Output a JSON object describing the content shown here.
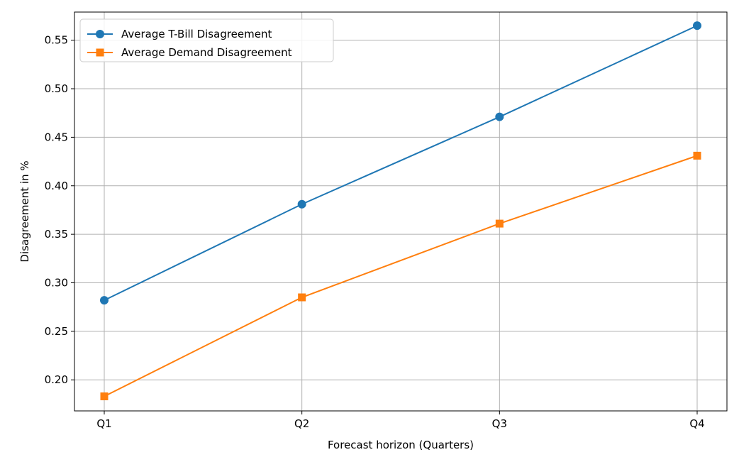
{
  "chart_data": {
    "type": "line",
    "title": "",
    "xlabel": "Forecast horizon (Quarters)",
    "ylabel": "Disagreement in %",
    "categories": [
      "Q1",
      "Q2",
      "Q3",
      "Q4"
    ],
    "ylim": [
      0.168,
      0.579
    ],
    "yticks": [
      0.2,
      0.25,
      0.3,
      0.35,
      0.4,
      0.45,
      0.5,
      0.55
    ],
    "ytick_labels": [
      "0.20",
      "0.25",
      "0.30",
      "0.35",
      "0.40",
      "0.45",
      "0.50",
      "0.55"
    ],
    "grid": true,
    "legend_position": "top-left",
    "series": [
      {
        "name": "Average T-Bill Disagreement",
        "values": [
          0.282,
          0.381,
          0.471,
          0.565
        ],
        "color": "#1f77b4",
        "marker": "circle"
      },
      {
        "name": "Average Demand Disagreement",
        "values": [
          0.183,
          0.285,
          0.361,
          0.431
        ],
        "color": "#ff7f0e",
        "marker": "square"
      }
    ]
  }
}
